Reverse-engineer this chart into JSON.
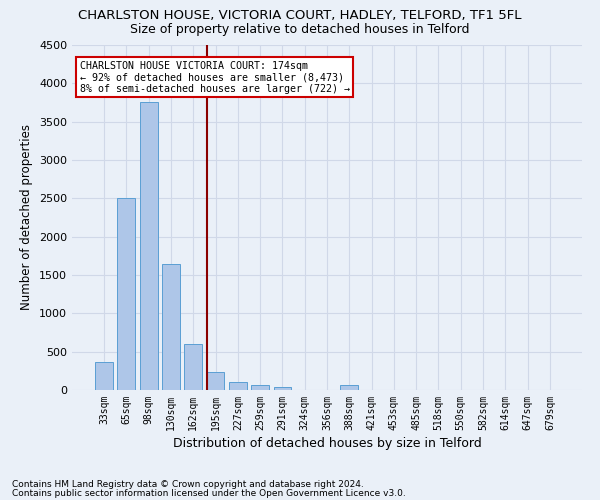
{
  "title": "CHARLSTON HOUSE, VICTORIA COURT, HADLEY, TELFORD, TF1 5FL",
  "subtitle": "Size of property relative to detached houses in Telford",
  "xlabel": "Distribution of detached houses by size in Telford",
  "ylabel": "Number of detached properties",
  "footnote1": "Contains HM Land Registry data © Crown copyright and database right 2024.",
  "footnote2": "Contains public sector information licensed under the Open Government Licence v3.0.",
  "categories": [
    "33sqm",
    "65sqm",
    "98sqm",
    "130sqm",
    "162sqm",
    "195sqm",
    "227sqm",
    "259sqm",
    "291sqm",
    "324sqm",
    "356sqm",
    "388sqm",
    "421sqm",
    "453sqm",
    "485sqm",
    "518sqm",
    "550sqm",
    "582sqm",
    "614sqm",
    "647sqm",
    "679sqm"
  ],
  "values": [
    370,
    2500,
    3750,
    1640,
    600,
    230,
    105,
    60,
    35,
    0,
    0,
    60,
    0,
    0,
    0,
    0,
    0,
    0,
    0,
    0,
    0
  ],
  "bar_color": "#aec6e8",
  "bar_edge_color": "#5a9fd4",
  "grid_color": "#d0d8e8",
  "vline_x_index": 4.62,
  "vline_color": "#8b0000",
  "annotation_text": "CHARLSTON HOUSE VICTORIA COURT: 174sqm\n← 92% of detached houses are smaller (8,473)\n8% of semi-detached houses are larger (722) →",
  "annotation_box_color": "#ffffff",
  "annotation_box_edge": "#cc0000",
  "ylim": [
    0,
    4500
  ],
  "yticks": [
    0,
    500,
    1000,
    1500,
    2000,
    2500,
    3000,
    3500,
    4000,
    4500
  ],
  "background_color": "#eaf0f8",
  "title_fontsize": 9.5,
  "subtitle_fontsize": 9
}
